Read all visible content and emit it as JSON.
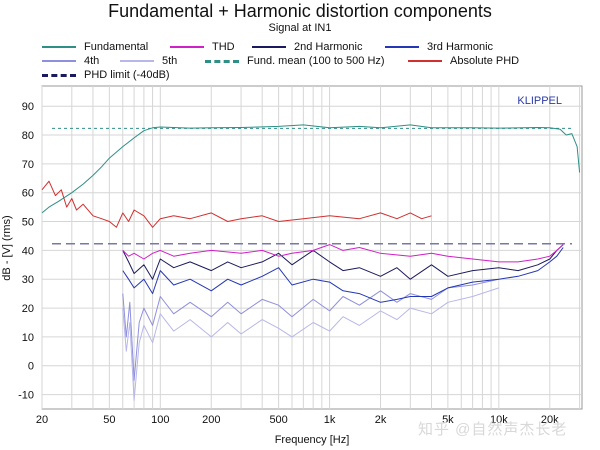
{
  "chart_data": {
    "type": "line",
    "title": "Fundamental + Harmonic distortion components",
    "subtitle": "Signal at IN1",
    "xlabel": "Frequency [Hz]",
    "ylabel": "dB - [V] (rms)",
    "brand": "KLIPPEL",
    "xscale": "log",
    "xlim": [
      20,
      31000
    ],
    "ylim": [
      -15,
      97
    ],
    "x_ticks": [
      {
        "value": 20,
        "label": "20"
      },
      {
        "value": 50,
        "label": "50"
      },
      {
        "value": 100,
        "label": "100"
      },
      {
        "value": 200,
        "label": "200"
      },
      {
        "value": 500,
        "label": "500"
      },
      {
        "value": 1000,
        "label": "1k"
      },
      {
        "value": 2000,
        "label": "2k"
      },
      {
        "value": 5000,
        "label": "5k"
      },
      {
        "value": 10000,
        "label": "10k"
      },
      {
        "value": 20000,
        "label": "20k"
      }
    ],
    "y_ticks": [
      90,
      80,
      70,
      60,
      50,
      40,
      30,
      20,
      10,
      0,
      -10
    ],
    "reference_lines": [
      {
        "name": "Fund. mean (100 to 500 Hz)",
        "value": 82.3,
        "color": "#2e8f86"
      },
      {
        "name": "PHD limit (-40dB)",
        "value": 42.3,
        "color": "#7777aa"
      }
    ],
    "series": [
      {
        "name": "Fundamental",
        "color": "#2e8f86",
        "x": [
          20,
          22,
          25,
          30,
          35,
          40,
          45,
          50,
          60,
          70,
          80,
          90,
          100,
          150,
          200,
          300,
          500,
          700,
          1000,
          1500,
          2000,
          3000,
          4000,
          5000,
          7000,
          10000,
          14000,
          17000,
          20000,
          23000,
          25000,
          27000,
          29000,
          30000
        ],
        "y": [
          53,
          55,
          57,
          60,
          63,
          66,
          69,
          72,
          76,
          79,
          81.5,
          82.5,
          82.8,
          82.4,
          82.5,
          82.6,
          83,
          83.5,
          82.5,
          83,
          82.5,
          83.5,
          82.5,
          82.5,
          82.5,
          82.4,
          82.5,
          82.6,
          82.5,
          82,
          80,
          80.5,
          76,
          67
        ]
      },
      {
        "name": "Absolute PHD",
        "color": "#d03030",
        "x": [
          20,
          22,
          24,
          26,
          28,
          30,
          32,
          35,
          40,
          45,
          50,
          55,
          60,
          65,
          70,
          80,
          90,
          100,
          120,
          150,
          200,
          250,
          300,
          400,
          500,
          700,
          1000,
          1500,
          2000,
          2500,
          3000,
          3500,
          4000
        ],
        "y": [
          61,
          64,
          59,
          61,
          55,
          58,
          54,
          56,
          52,
          51,
          50,
          48,
          53,
          50,
          54,
          52,
          48,
          51,
          52,
          51,
          53,
          50,
          51,
          52,
          50,
          51,
          52,
          51,
          53,
          51,
          53,
          51,
          52
        ]
      },
      {
        "name": "THD",
        "color": "#d020c8",
        "x": [
          60,
          65,
          70,
          80,
          90,
          100,
          120,
          150,
          200,
          300,
          400,
          500,
          600,
          800,
          1000,
          1200,
          1500,
          2000,
          3000,
          4000,
          5000,
          7000,
          10000,
          13000,
          17000,
          20000,
          22000,
          24000
        ],
        "y": [
          40,
          38,
          39,
          37,
          39,
          40,
          38,
          39,
          40,
          39,
          40,
          38,
          39,
          40,
          42,
          40,
          41,
          39,
          38,
          39,
          38,
          37,
          36,
          36,
          37,
          38,
          40,
          42
        ]
      },
      {
        "name": "2nd Harmonic",
        "color": "#1b1a5e",
        "x": [
          60,
          65,
          70,
          80,
          90,
          100,
          120,
          150,
          200,
          250,
          300,
          400,
          500,
          600,
          800,
          1000,
          1200,
          1500,
          2000,
          2500,
          3000,
          4000,
          5000,
          7000,
          10000,
          13000,
          17000,
          20000,
          22000,
          24000
        ],
        "y": [
          40,
          36,
          32,
          35,
          30,
          37,
          34,
          36,
          33,
          36,
          34,
          36,
          39,
          35,
          40,
          36,
          33,
          34,
          31,
          34,
          30,
          35,
          31,
          33,
          34,
          33,
          35,
          37,
          40,
          42
        ]
      },
      {
        "name": "3rd Harmonic",
        "color": "#2437b5",
        "x": [
          60,
          65,
          70,
          80,
          90,
          100,
          120,
          150,
          200,
          250,
          300,
          400,
          500,
          600,
          800,
          1000,
          1200,
          1500,
          2000,
          2500,
          3000,
          4000,
          5000,
          7000,
          10000,
          13000,
          17000,
          20000,
          22000,
          24000
        ],
        "y": [
          33,
          30,
          27,
          30,
          25,
          33,
          28,
          30,
          26,
          30,
          28,
          31,
          34,
          28,
          30,
          29,
          26,
          25,
          22,
          23,
          24,
          24,
          27,
          29,
          30,
          31,
          33,
          36,
          38,
          41
        ]
      },
      {
        "name": "4th",
        "color": "#8f8fe0",
        "x": [
          60,
          63,
          66,
          70,
          75,
          80,
          90,
          100,
          120,
          150,
          200,
          250,
          300,
          400,
          500,
          600,
          800,
          1000,
          1200,
          1500,
          2000,
          2500,
          3000,
          4000,
          5000,
          7000,
          10000
        ],
        "y": [
          25,
          10,
          22,
          -5,
          15,
          20,
          14,
          24,
          18,
          22,
          17,
          22,
          18,
          23,
          21,
          17,
          23,
          19,
          24,
          21,
          26,
          22,
          25,
          23,
          27,
          28,
          30
        ]
      },
      {
        "name": "5th",
        "color": "#b7b7ec",
        "x": [
          60,
          63,
          66,
          70,
          75,
          80,
          90,
          100,
          120,
          150,
          200,
          250,
          300,
          400,
          500,
          600,
          800,
          1000,
          1200,
          1500,
          2000,
          2500,
          3000,
          4000,
          5000,
          7000,
          10000
        ],
        "y": [
          20,
          5,
          15,
          -12,
          8,
          14,
          8,
          18,
          12,
          16,
          10,
          15,
          11,
          16,
          13,
          10,
          15,
          12,
          17,
          14,
          19,
          16,
          20,
          18,
          22,
          24,
          27
        ]
      }
    ],
    "legend": {
      "placement": "top",
      "entries": [
        {
          "name": "Fundamental",
          "color": "#2e8f86",
          "style": "solid"
        },
        {
          "name": "THD",
          "color": "#d020c8",
          "style": "solid"
        },
        {
          "name": "2nd Harmonic",
          "color": "#1b1a5e",
          "style": "solid"
        },
        {
          "name": "3rd Harmonic",
          "color": "#2437b5",
          "style": "solid"
        },
        {
          "name": "4th",
          "color": "#8f8fe0",
          "style": "solid"
        },
        {
          "name": "5th",
          "color": "#b7b7ec",
          "style": "solid"
        },
        {
          "name": "Fund. mean (100 to 500 Hz)",
          "color": "#2e8f86",
          "style": "dashed"
        },
        {
          "name": "Absolute PHD",
          "color": "#d03030",
          "style": "solid"
        },
        {
          "name": "PHD limit (-40dB)",
          "color": "#1b1a5e",
          "style": "dashed"
        }
      ]
    }
  },
  "watermark": "知乎 @自然声杰长老"
}
